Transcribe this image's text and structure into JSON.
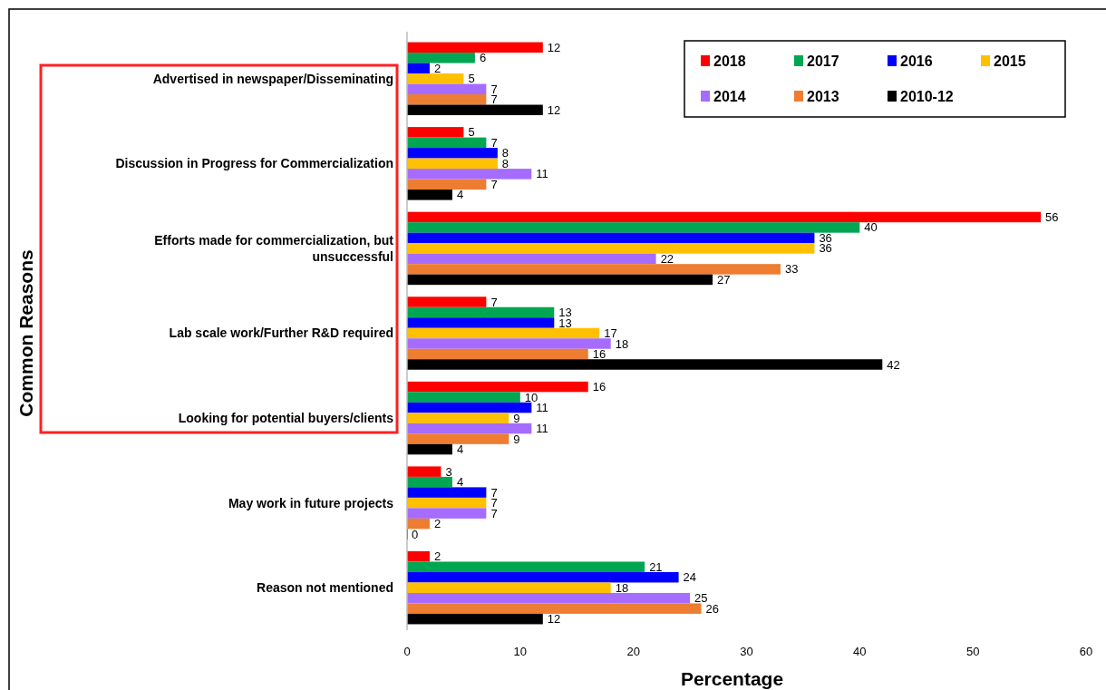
{
  "chart_data": {
    "type": "bar",
    "orientation": "horizontal",
    "ylabel": "Common Reasons",
    "xlabel": "Percentage",
    "categories": [
      "Advertised in newspaper/Disseminating",
      "Discussion in Progress for Commercialization",
      "Efforts made for commercialization, but unsuccessful",
      "Lab scale work/Further R&D required",
      "Looking for potential buyers/clients",
      "May work in future projects",
      "Reason not mentioned"
    ],
    "series": [
      {
        "name": "2018",
        "color": "#ff0000",
        "values": [
          12,
          5,
          56,
          7,
          16,
          3,
          2
        ]
      },
      {
        "name": "2017",
        "color": "#00a651",
        "values": [
          6,
          7,
          40,
          13,
          10,
          4,
          21
        ]
      },
      {
        "name": "2016",
        "color": "#0000ff",
        "values": [
          2,
          8,
          36,
          13,
          11,
          7,
          24
        ]
      },
      {
        "name": "2015",
        "color": "#ffc000",
        "values": [
          5,
          8,
          36,
          17,
          9,
          7,
          18
        ]
      },
      {
        "name": "2014",
        "color": "#a66cff",
        "values": [
          7,
          11,
          22,
          18,
          11,
          7,
          25
        ]
      },
      {
        "name": "2013",
        "color": "#ed7d31",
        "values": [
          7,
          7,
          33,
          16,
          9,
          2,
          26
        ]
      },
      {
        "name": "2010-12",
        "color": "#000000",
        "values": [
          12,
          4,
          27,
          42,
          4,
          0,
          12
        ]
      }
    ],
    "xlim": [
      0,
      60
    ],
    "xticks": [
      0,
      10,
      20,
      30,
      40,
      50,
      60
    ],
    "data_labels": true,
    "legend": "top right"
  }
}
